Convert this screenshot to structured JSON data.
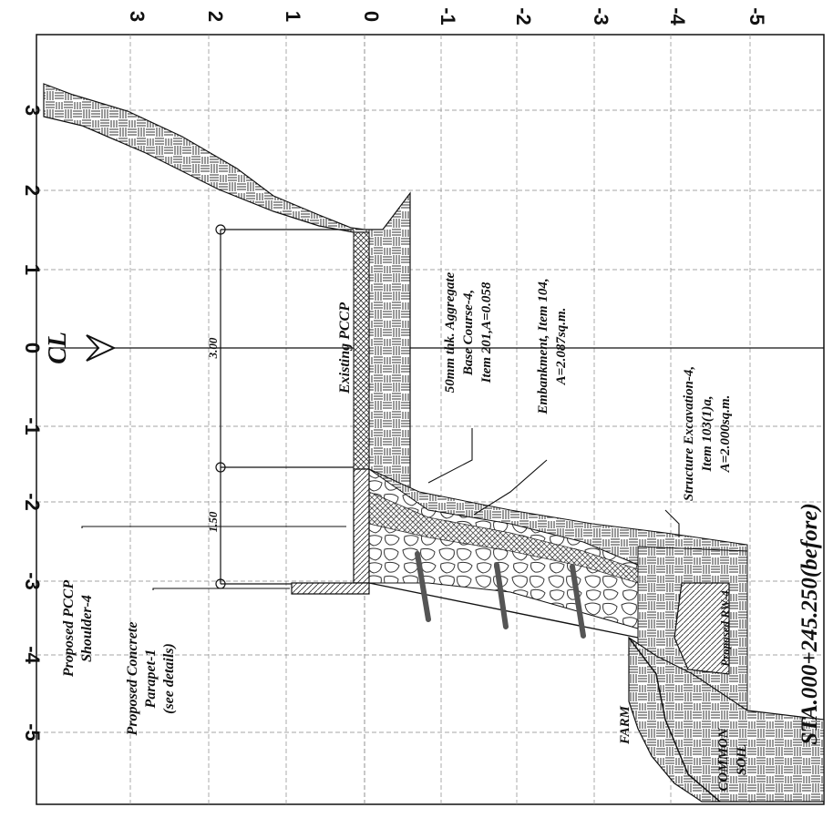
{
  "ticks_top": [
    "3",
    "2",
    "1",
    "0",
    "-1",
    "-2",
    "-3",
    "-4",
    "-5"
  ],
  "ticks_left": [
    "3",
    "2",
    "1",
    "0",
    "-1",
    "-2",
    "-3",
    "-4",
    "-5"
  ],
  "labels": {
    "cl": "CL",
    "existing_pccp": "Existing PCCP",
    "dim_300": "3.00",
    "dim_150": "1.50",
    "shoulder_1": "Proposed PCCP",
    "shoulder_2": "Shoulder-4",
    "parapet_1": "Proposed Concrete",
    "parapet_2": "Parapet-1",
    "parapet_3": "(see details)",
    "base_1": "50mm thk. Aggregate",
    "base_2": "Base Course-4,",
    "base_3": "Item 201,A=0.058",
    "emb_1": "Embankment, Item 104,",
    "emb_2": "A=2.087sq.m.",
    "exc_1": "Structure Excavation-4,",
    "exc_2": "Item 103(1)a,",
    "exc_3": "A=2.000sq.m.",
    "riprap": "Proposed RW-4",
    "farm": "FARM",
    "soil_1": "COMMON",
    "soil_2": "SOIL",
    "station": "STA.000+245.250(before)"
  }
}
